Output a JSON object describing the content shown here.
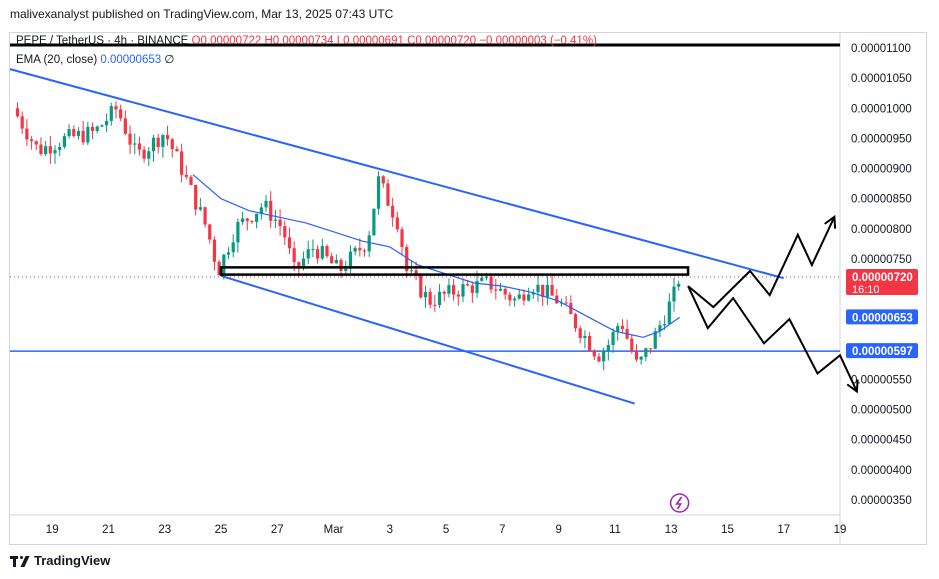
{
  "header": {
    "published": "malivexanalyst published on TradingView.com, Mar 13, 2025 07:43 UTC"
  },
  "legend": {
    "symbol": "PEPE / TetherUS · 4h · BINANCE",
    "ohlc": "O0.00000722 H0.00000734 L0.00000691 C0.00000720 −0.00000003 (−0.41%)",
    "ema_label": "EMA (20, close)",
    "ema_value": "0.00000653",
    "ema_suffix": "∅"
  },
  "footer": {
    "brand": "TradingView"
  },
  "colors": {
    "up": "#089981",
    "down": "#f23645",
    "ema": "#2962ff",
    "channel": "#2962ff",
    "price_badge": "#f23645",
    "ema_badge": "#2962ff",
    "support_badge": "#2962ff",
    "flash_icon": "#9c27b0"
  },
  "chart_data": {
    "type": "candlestick",
    "symbol": "PEPE / TetherUS",
    "interval": "4h",
    "exchange": "BINANCE",
    "ylim": [
      3.25e-06,
      1.125e-05
    ],
    "y_ticks": [
      "0.00001100",
      "0.00001050",
      "0.00001000",
      "0.00000950",
      "0.00000900",
      "0.00000850",
      "0.00000800",
      "0.00000750",
      "0.00000700",
      "0.00000650",
      "0.00000600",
      "0.00000550",
      "0.00000500",
      "0.00000450",
      "0.00000400",
      "0.00000350"
    ],
    "x_axis": {
      "range_days": [
        17.5,
        47
      ],
      "ticks": [
        {
          "label": "19",
          "day": 19
        },
        {
          "label": "21",
          "day": 21
        },
        {
          "label": "23",
          "day": 23
        },
        {
          "label": "25",
          "day": 25
        },
        {
          "label": "27",
          "day": 27
        },
        {
          "label": "Mar",
          "day": 29
        },
        {
          "label": "3",
          "day": 31
        },
        {
          "label": "5",
          "day": 33
        },
        {
          "label": "7",
          "day": 35
        },
        {
          "label": "9",
          "day": 37
        },
        {
          "label": "11",
          "day": 39
        },
        {
          "label": "13",
          "day": 41
        },
        {
          "label": "15",
          "day": 43
        },
        {
          "label": "17",
          "day": 45
        },
        {
          "label": "19",
          "day": 47
        }
      ]
    },
    "price_path": [
      [
        17.6,
        1e-05
      ],
      [
        18.5,
        9.3e-06
      ],
      [
        19.5,
        9.5e-06
      ],
      [
        20.5,
        9.6e-06
      ],
      [
        21.3,
        1e-05
      ],
      [
        22.0,
        9.2e-06
      ],
      [
        23.0,
        9.6e-06
      ],
      [
        23.6,
        9e-06
      ],
      [
        24.5,
        8e-06
      ],
      [
        24.9,
        7.3e-06
      ],
      [
        25.5,
        8e-06
      ],
      [
        26.5,
        8.4e-06
      ],
      [
        27.2,
        8e-06
      ],
      [
        27.6,
        7.3e-06
      ],
      [
        28.3,
        7.7e-06
      ],
      [
        29.2,
        7.3e-06
      ],
      [
        30.2,
        7.8e-06
      ],
      [
        30.6,
        8.8e-06
      ],
      [
        31.3,
        8.1e-06
      ],
      [
        31.6,
        7.3e-06
      ],
      [
        32.4,
        6.8e-06
      ],
      [
        33.5,
        7e-06
      ],
      [
        34.5,
        7.1e-06
      ],
      [
        35.5,
        6.8e-06
      ],
      [
        36.0,
        7.1e-06
      ],
      [
        37.0,
        6.8e-06
      ],
      [
        37.8,
        6.3e-06
      ],
      [
        38.4,
        5.9e-06
      ],
      [
        38.8,
        6.1e-06
      ],
      [
        39.2,
        6.5e-06
      ],
      [
        39.8,
        5.7e-06
      ],
      [
        40.3,
        6.1e-06
      ],
      [
        40.7,
        6.5e-06
      ],
      [
        41.1,
        6.9e-06
      ],
      [
        41.3,
        7.22e-06
      ]
    ],
    "ema_path": [
      [
        24.0,
        8.9e-06
      ],
      [
        25.0,
        8.5e-06
      ],
      [
        26.0,
        8.3e-06
      ],
      [
        27.0,
        8.2e-06
      ],
      [
        28.0,
        8.1e-06
      ],
      [
        29.0,
        7.95e-06
      ],
      [
        30.0,
        7.8e-06
      ],
      [
        31.0,
        7.7e-06
      ],
      [
        32.0,
        7.4e-06
      ],
      [
        33.0,
        7.25e-06
      ],
      [
        34.0,
        7.1e-06
      ],
      [
        35.0,
        7.05e-06
      ],
      [
        36.0,
        6.95e-06
      ],
      [
        37.0,
        6.8e-06
      ],
      [
        38.0,
        6.55e-06
      ],
      [
        39.0,
        6.3e-06
      ],
      [
        40.0,
        6.2e-06
      ],
      [
        40.6,
        6.3e-06
      ],
      [
        41.3,
        6.53e-06
      ]
    ],
    "last_price": {
      "value": 7.2e-06,
      "label": "0.00000720",
      "countdown": "16:10"
    },
    "ema_value": {
      "value": 6.53e-06,
      "label": "0.00000653"
    },
    "support": {
      "value": 5.97e-06,
      "label": "0.00000597"
    },
    "channel_upper": [
      [
        17.5,
        1.065e-05
      ],
      [
        45.0,
        7.18e-06
      ]
    ],
    "channel_lower": [
      [
        25.0,
        7.22e-06
      ],
      [
        39.7,
        5.1e-06
      ]
    ],
    "resistance_box": {
      "x": [
        25.0,
        41.6
      ],
      "y": [
        7.24e-06,
        7.36e-06
      ]
    },
    "bullish_scenario": [
      [
        41.6,
        7.05e-06
      ],
      [
        42.5,
        6.7e-06
      ],
      [
        43.8,
        7.3e-06
      ],
      [
        44.5,
        6.9e-06
      ],
      [
        45.5,
        7.9e-06
      ],
      [
        46.0,
        7.4e-06
      ],
      [
        46.8,
        8.2e-06
      ]
    ],
    "bearish_scenario": [
      [
        41.6,
        7.05e-06
      ],
      [
        42.3,
        6.35e-06
      ],
      [
        43.2,
        6.85e-06
      ],
      [
        44.3,
        6.1e-06
      ],
      [
        45.2,
        6.5e-06
      ],
      [
        46.2,
        5.6e-06
      ],
      [
        47.0,
        5.9e-06
      ],
      [
        47.6,
        5.3e-06
      ]
    ]
  }
}
